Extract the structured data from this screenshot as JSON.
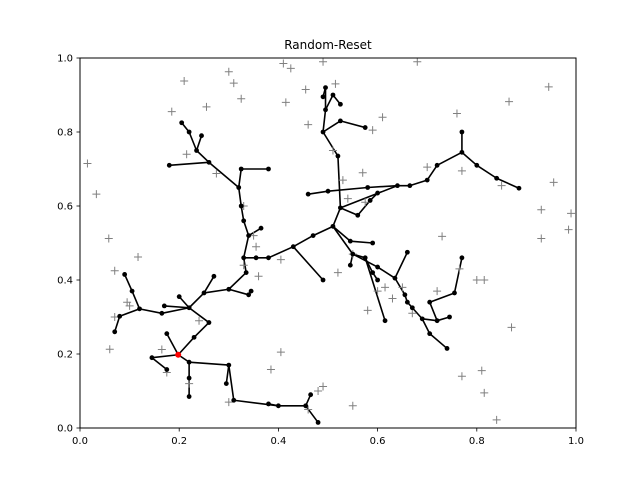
{
  "chart_data": {
    "type": "scatter",
    "title": "Random-Reset",
    "xlabel": "",
    "ylabel": "",
    "xlim": [
      0.0,
      1.0
    ],
    "ylim": [
      0.0,
      1.0
    ],
    "x_ticks": [
      "0.0",
      "0.2",
      "0.4",
      "0.6",
      "0.8",
      "1.0"
    ],
    "y_ticks": [
      "0.0",
      "0.2",
      "0.4",
      "0.6",
      "0.8",
      "1.0"
    ],
    "grid": false,
    "colors": {
      "tree": "#000000",
      "samples": "#808080",
      "start": "#ff0000"
    },
    "start": [
      0.198,
      0.198
    ],
    "samples": [
      [
        0.015,
        0.715
      ],
      [
        0.033,
        0.632
      ],
      [
        0.058,
        0.512
      ],
      [
        0.06,
        0.213
      ],
      [
        0.07,
        0.425
      ],
      [
        0.07,
        0.3
      ],
      [
        0.095,
        0.34
      ],
      [
        0.1,
        0.33
      ],
      [
        0.117,
        0.462
      ],
      [
        0.165,
        0.212
      ],
      [
        0.175,
        0.15
      ],
      [
        0.185,
        0.855
      ],
      [
        0.21,
        0.938
      ],
      [
        0.215,
        0.74
      ],
      [
        0.22,
        0.12
      ],
      [
        0.255,
        0.868
      ],
      [
        0.275,
        0.688
      ],
      [
        0.3,
        0.963
      ],
      [
        0.31,
        0.932
      ],
      [
        0.325,
        0.89
      ],
      [
        0.24,
        0.29
      ],
      [
        0.3,
        0.07
      ],
      [
        0.33,
        0.6
      ],
      [
        0.33,
        0.44
      ],
      [
        0.35,
        0.52
      ],
      [
        0.355,
        0.49
      ],
      [
        0.36,
        0.41
      ],
      [
        0.385,
        0.158
      ],
      [
        0.405,
        0.205
      ],
      [
        0.405,
        0.455
      ],
      [
        0.41,
        0.985
      ],
      [
        0.415,
        0.88
      ],
      [
        0.425,
        0.972
      ],
      [
        0.455,
        0.915
      ],
      [
        0.46,
        0.82
      ],
      [
        0.46,
        0.05
      ],
      [
        0.48,
        0.1
      ],
      [
        0.49,
        0.112
      ],
      [
        0.49,
        0.99
      ],
      [
        0.51,
        0.75
      ],
      [
        0.515,
        0.93
      ],
      [
        0.52,
        0.42
      ],
      [
        0.53,
        0.67
      ],
      [
        0.54,
        0.62
      ],
      [
        0.55,
        0.47
      ],
      [
        0.55,
        0.06
      ],
      [
        0.57,
        0.69
      ],
      [
        0.575,
        0.61
      ],
      [
        0.58,
        0.318
      ],
      [
        0.59,
        0.805
      ],
      [
        0.6,
        0.37
      ],
      [
        0.61,
        0.84
      ],
      [
        0.615,
        0.38
      ],
      [
        0.63,
        0.35
      ],
      [
        0.65,
        0.38
      ],
      [
        0.67,
        0.31
      ],
      [
        0.68,
        0.99
      ],
      [
        0.7,
        0.705
      ],
      [
        0.72,
        0.37
      ],
      [
        0.73,
        0.518
      ],
      [
        0.76,
        0.85
      ],
      [
        0.765,
        0.43
      ],
      [
        0.77,
        0.695
      ],
      [
        0.77,
        0.14
      ],
      [
        0.8,
        0.4
      ],
      [
        0.81,
        0.155
      ],
      [
        0.815,
        0.4
      ],
      [
        0.815,
        0.095
      ],
      [
        0.84,
        0.022
      ],
      [
        0.85,
        0.655
      ],
      [
        0.865,
        0.882
      ],
      [
        0.87,
        0.272
      ],
      [
        0.93,
        0.59
      ],
      [
        0.93,
        0.512
      ],
      [
        0.945,
        0.922
      ],
      [
        0.955,
        0.664
      ],
      [
        0.985,
        0.536
      ],
      [
        0.99,
        0.58
      ]
    ],
    "nodes": [
      [
        0.198,
        0.198
      ],
      [
        0.22,
        0.178
      ],
      [
        0.3,
        0.17
      ],
      [
        0.31,
        0.075
      ],
      [
        0.4,
        0.06
      ],
      [
        0.455,
        0.06
      ],
      [
        0.48,
        0.015
      ],
      [
        0.465,
        0.09
      ],
      [
        0.38,
        0.065
      ],
      [
        0.295,
        0.12
      ],
      [
        0.22,
        0.135
      ],
      [
        0.22,
        0.085
      ],
      [
        0.145,
        0.19
      ],
      [
        0.175,
        0.158
      ],
      [
        0.175,
        0.255
      ],
      [
        0.23,
        0.245
      ],
      [
        0.26,
        0.285
      ],
      [
        0.22,
        0.325
      ],
      [
        0.2,
        0.355
      ],
      [
        0.17,
        0.33
      ],
      [
        0.165,
        0.31
      ],
      [
        0.12,
        0.322
      ],
      [
        0.08,
        0.302
      ],
      [
        0.07,
        0.26
      ],
      [
        0.105,
        0.37
      ],
      [
        0.09,
        0.415
      ],
      [
        0.25,
        0.365
      ],
      [
        0.27,
        0.41
      ],
      [
        0.3,
        0.375
      ],
      [
        0.34,
        0.36
      ],
      [
        0.345,
        0.37
      ],
      [
        0.335,
        0.42
      ],
      [
        0.33,
        0.46
      ],
      [
        0.355,
        0.46
      ],
      [
        0.38,
        0.46
      ],
      [
        0.34,
        0.52
      ],
      [
        0.365,
        0.54
      ],
      [
        0.33,
        0.56
      ],
      [
        0.325,
        0.6
      ],
      [
        0.32,
        0.65
      ],
      [
        0.325,
        0.7
      ],
      [
        0.38,
        0.7
      ],
      [
        0.26,
        0.718
      ],
      [
        0.235,
        0.75
      ],
      [
        0.245,
        0.79
      ],
      [
        0.22,
        0.8
      ],
      [
        0.205,
        0.825
      ],
      [
        0.18,
        0.71
      ],
      [
        0.43,
        0.49
      ],
      [
        0.47,
        0.52
      ],
      [
        0.51,
        0.545
      ],
      [
        0.545,
        0.505
      ],
      [
        0.59,
        0.5
      ],
      [
        0.55,
        0.47
      ],
      [
        0.575,
        0.46
      ],
      [
        0.59,
        0.42
      ],
      [
        0.6,
        0.4
      ],
      [
        0.615,
        0.29
      ],
      [
        0.545,
        0.44
      ],
      [
        0.49,
        0.4
      ],
      [
        0.6,
        0.435
      ],
      [
        0.635,
        0.405
      ],
      [
        0.655,
        0.36
      ],
      [
        0.66,
        0.34
      ],
      [
        0.67,
        0.325
      ],
      [
        0.69,
        0.295
      ],
      [
        0.72,
        0.29
      ],
      [
        0.745,
        0.3
      ],
      [
        0.705,
        0.255
      ],
      [
        0.74,
        0.215
      ],
      [
        0.705,
        0.34
      ],
      [
        0.755,
        0.365
      ],
      [
        0.77,
        0.46
      ],
      [
        0.66,
        0.475
      ],
      [
        0.525,
        0.595
      ],
      [
        0.56,
        0.575
      ],
      [
        0.585,
        0.615
      ],
      [
        0.6,
        0.635
      ],
      [
        0.64,
        0.655
      ],
      [
        0.58,
        0.65
      ],
      [
        0.5,
        0.64
      ],
      [
        0.46,
        0.632
      ],
      [
        0.665,
        0.655
      ],
      [
        0.7,
        0.67
      ],
      [
        0.72,
        0.71
      ],
      [
        0.77,
        0.745
      ],
      [
        0.77,
        0.8
      ],
      [
        0.8,
        0.71
      ],
      [
        0.84,
        0.675
      ],
      [
        0.885,
        0.648
      ],
      [
        0.52,
        0.735
      ],
      [
        0.49,
        0.8
      ],
      [
        0.525,
        0.83
      ],
      [
        0.575,
        0.812
      ],
      [
        0.495,
        0.86
      ],
      [
        0.495,
        0.92
      ],
      [
        0.51,
        0.9
      ],
      [
        0.525,
        0.875
      ],
      [
        0.49,
        0.895
      ]
    ],
    "edges": [
      [
        0,
        1
      ],
      [
        1,
        2
      ],
      [
        2,
        3
      ],
      [
        3,
        4
      ],
      [
        4,
        5
      ],
      [
        5,
        6
      ],
      [
        5,
        7
      ],
      [
        4,
        8
      ],
      [
        2,
        9
      ],
      [
        1,
        10
      ],
      [
        10,
        11
      ],
      [
        0,
        12
      ],
      [
        12,
        13
      ],
      [
        0,
        14
      ],
      [
        0,
        15
      ],
      [
        15,
        16
      ],
      [
        16,
        17
      ],
      [
        17,
        18
      ],
      [
        17,
        19
      ],
      [
        17,
        20
      ],
      [
        20,
        21
      ],
      [
        21,
        22
      ],
      [
        22,
        23
      ],
      [
        21,
        24
      ],
      [
        24,
        25
      ],
      [
        17,
        26
      ],
      [
        26,
        27
      ],
      [
        26,
        28
      ],
      [
        28,
        29
      ],
      [
        29,
        30
      ],
      [
        28,
        31
      ],
      [
        31,
        32
      ],
      [
        32,
        33
      ],
      [
        33,
        34
      ],
      [
        32,
        35
      ],
      [
        35,
        36
      ],
      [
        35,
        37
      ],
      [
        37,
        38
      ],
      [
        38,
        39
      ],
      [
        39,
        40
      ],
      [
        40,
        41
      ],
      [
        39,
        42
      ],
      [
        42,
        43
      ],
      [
        43,
        44
      ],
      [
        43,
        45
      ],
      [
        45,
        46
      ],
      [
        42,
        47
      ],
      [
        34,
        48
      ],
      [
        48,
        49
      ],
      [
        49,
        50
      ],
      [
        50,
        51
      ],
      [
        51,
        52
      ],
      [
        50,
        53
      ],
      [
        53,
        54
      ],
      [
        54,
        55
      ],
      [
        55,
        56
      ],
      [
        54,
        57
      ],
      [
        53,
        58
      ],
      [
        48,
        59
      ],
      [
        53,
        60
      ],
      [
        60,
        61
      ],
      [
        61,
        62
      ],
      [
        62,
        63
      ],
      [
        63,
        64
      ],
      [
        64,
        65
      ],
      [
        65,
        66
      ],
      [
        66,
        67
      ],
      [
        65,
        68
      ],
      [
        68,
        69
      ],
      [
        66,
        70
      ],
      [
        70,
        71
      ],
      [
        71,
        72
      ],
      [
        61,
        73
      ],
      [
        50,
        74
      ],
      [
        74,
        75
      ],
      [
        75,
        76
      ],
      [
        76,
        77
      ],
      [
        74,
        78
      ],
      [
        78,
        79
      ],
      [
        79,
        80
      ],
      [
        80,
        81
      ],
      [
        78,
        82
      ],
      [
        82,
        83
      ],
      [
        83,
        84
      ],
      [
        84,
        85
      ],
      [
        85,
        86
      ],
      [
        85,
        87
      ],
      [
        87,
        88
      ],
      [
        88,
        89
      ],
      [
        74,
        90
      ],
      [
        90,
        91
      ],
      [
        91,
        92
      ],
      [
        92,
        93
      ],
      [
        91,
        94
      ],
      [
        94,
        95
      ],
      [
        94,
        96
      ],
      [
        96,
        97
      ],
      [
        95,
        98
      ]
    ]
  }
}
